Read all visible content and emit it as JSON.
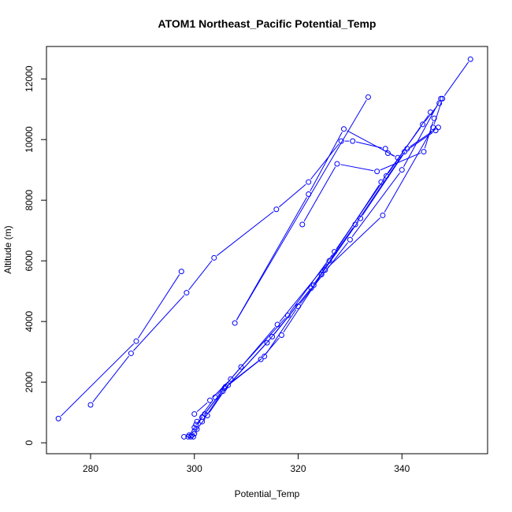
{
  "chart_data": {
    "type": "scatter",
    "title": "ATOM1 Northeast_Pacific Potential_Temp",
    "xlabel": "Potential_Temp",
    "ylabel": "Altitude (m)",
    "xlim": [
      271.5,
      356.5
    ],
    "ylim": [
      -360,
      13070
    ],
    "xticks": [
      280,
      300,
      320,
      340
    ],
    "yticks": [
      0,
      2000,
      4000,
      6000,
      8000,
      10000,
      12000
    ],
    "grid": false,
    "legend": "none",
    "colors": {
      "series": "#0000ff",
      "frame": "#000000"
    },
    "markers": "open-circle",
    "lines": true,
    "series": [
      {
        "x": [
          273.8,
          288.8,
          297.5
        ],
        "y": [
          800,
          3350,
          5650
        ]
      },
      {
        "x": [
          280.0,
          287.8,
          298.5,
          303.8,
          315.8,
          322.0,
          328.3,
          330.5,
          336.8,
          337.3,
          339.2,
          328.8,
          322.0,
          307.8,
          333.5
        ],
        "y": [
          1250,
          2950,
          4950,
          6100,
          7700,
          8600,
          9950,
          9950,
          9700,
          9550,
          9400,
          10350,
          8200,
          3950,
          11400
        ]
      },
      {
        "x": [
          320.8,
          327.5,
          335.2,
          344.2,
          346.2
        ],
        "y": [
          7200,
          9200,
          8950,
          9600,
          10700
        ]
      },
      {
        "x": [
          298.0,
          299.0,
          300.3,
          302.0,
          305.8,
          312.8,
          316.8,
          324.5,
          325.2,
          336.3,
          346.0,
          347.8,
          353.2
        ],
        "y": [
          200,
          250,
          600,
          950,
          1800,
          2750,
          3550,
          5550,
          5700,
          7500,
          10400,
          11350,
          12650
        ]
      },
      {
        "x": [
          298.8,
          299.5,
          300.0,
          301.5,
          306.0,
          313.5,
          320.0,
          330.0,
          340.0,
          347.5
        ],
        "y": [
          200,
          250,
          500,
          850,
          1850,
          2850,
          4500,
          6700,
          9000,
          11350
        ]
      },
      {
        "x": [
          299.3,
          300.0,
          301.5,
          305.5,
          315.0,
          323.0,
          332.0,
          341.0,
          347.0
        ],
        "y": [
          200,
          300,
          700,
          1700,
          3500,
          5200,
          7400,
          9700,
          10400
        ]
      },
      {
        "x": [
          299.8,
          300.5,
          302.5,
          306.5,
          314.0,
          322.5,
          331.0,
          340.5,
          346.5
        ],
        "y": [
          200,
          450,
          900,
          1900,
          3300,
          5100,
          7200,
          9600,
          10300
        ]
      },
      {
        "x": [
          300.0,
          303.0,
          307.0,
          316.0,
          326.0,
          336.0,
          344.0,
          347.2
        ],
        "y": [
          950,
          1400,
          2100,
          3900,
          6000,
          8600,
          10500,
          11200
        ]
      },
      {
        "x": [
          300.5,
          304.0,
          309.0,
          318.0,
          327.0,
          337.0,
          345.5
        ],
        "y": [
          700,
          1500,
          2500,
          4200,
          6300,
          8800,
          10900
        ]
      }
    ]
  }
}
